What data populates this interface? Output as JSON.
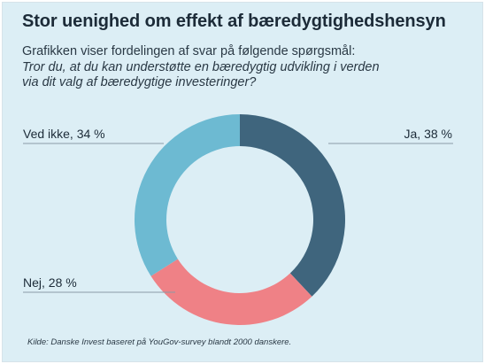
{
  "header": {
    "title": "Stor uenighed om effekt af bæredygtighedshensyn",
    "subtitle_line1": "Grafikken viser fordelingen af svar på følgende spørgsmål:",
    "question_line1": "Tror du, at du kan understøtte en bæredygtig udvikling i verden",
    "question_line2": "via dit valg af bæredygtige investeringer?"
  },
  "footer": {
    "source": "Kilde: Danske Invest baseret på YouGov-survey blandt 2000 danskere."
  },
  "chart_data": {
    "type": "pie",
    "donut": true,
    "slices": [
      {
        "name": "Ja",
        "value": 38,
        "label": "Ja, 38 %",
        "color": "#3f657d"
      },
      {
        "name": "Nej",
        "value": 28,
        "label": "Nej, 28 %",
        "color": "#ef8186"
      },
      {
        "name": "Ved ikke",
        "value": 34,
        "label": "Ved ikke, 34 %",
        "color": "#6dbad2"
      }
    ],
    "start_angle": "top",
    "direction": "clockwise"
  },
  "colors": {
    "background": "#dceef5",
    "text": "#1c2b38",
    "leader_line": "#8a9aa6"
  }
}
